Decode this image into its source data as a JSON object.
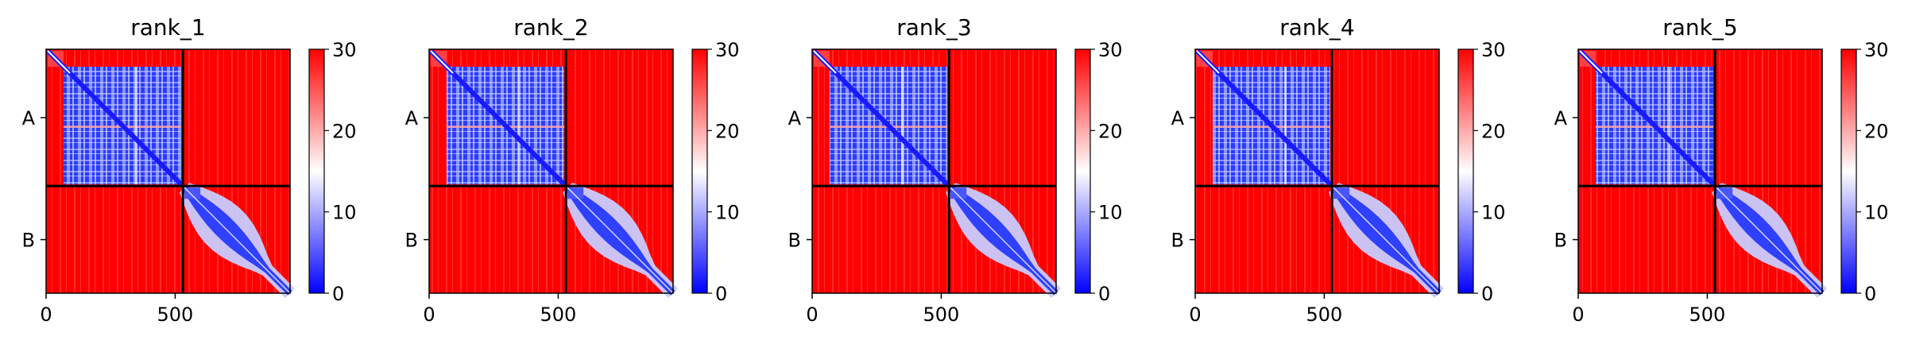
{
  "chart_data": {
    "type": "heatmap",
    "colormap": "bwr",
    "colormap_colors": [
      "#0000ff",
      "#ffffff",
      "#ff0000"
    ],
    "boundary_color": "#000000",
    "vmin": 0,
    "vmax": 30,
    "colorbar_ticks": [
      "0",
      "10",
      "20",
      "30"
    ],
    "x_ticks": [
      {
        "value": 0,
        "label": "0"
      },
      {
        "value": 500,
        "label": "500"
      }
    ],
    "xlim": [
      0,
      945
    ],
    "chains": [
      {
        "label": "A",
        "start": 0,
        "end": 530
      },
      {
        "label": "B",
        "start": 530,
        "end": 945
      }
    ],
    "panels": [
      {
        "title": "rank_1"
      },
      {
        "title": "rank_2"
      },
      {
        "title": "rank_3"
      },
      {
        "title": "rank_4"
      },
      {
        "title": "rank_5"
      }
    ]
  }
}
